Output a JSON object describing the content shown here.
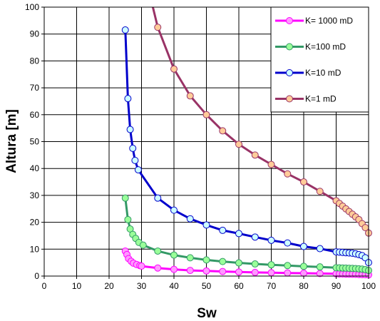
{
  "chart_data": {
    "type": "line",
    "title": "",
    "xlabel": "Sw",
    "ylabel": "Altura [m]",
    "xlim": [
      0,
      100
    ],
    "ylim": [
      0,
      100
    ],
    "xticks": [
      0,
      10,
      20,
      30,
      40,
      50,
      60,
      70,
      80,
      90,
      100
    ],
    "yticks": [
      0,
      10,
      20,
      30,
      40,
      50,
      60,
      70,
      80,
      90,
      100
    ],
    "grid": true,
    "legend_position": "top-right",
    "series": [
      {
        "name": "K= 1000 mD",
        "line_color": "#ff00ff",
        "marker_fill": "#ff99ff",
        "x": [
          25.0,
          25.5,
          26.0,
          26.8,
          27.5,
          28.5,
          29.5,
          30.0,
          35.0,
          40.0,
          45.0,
          50.0,
          55.0,
          60.0,
          65.0,
          70.0,
          75.0,
          80.0,
          85.0,
          90.0,
          91.0,
          92.0,
          93.0,
          94.0,
          95.0,
          96.0,
          97.0,
          98.0,
          99.0,
          100.0
        ],
        "y": [
          9.3,
          8.0,
          6.5,
          5.5,
          4.8,
          4.3,
          3.9,
          3.7,
          3.0,
          2.5,
          2.1,
          1.9,
          1.7,
          1.5,
          1.35,
          1.25,
          1.15,
          1.05,
          0.95,
          0.85,
          0.8,
          0.78,
          0.75,
          0.72,
          0.7,
          0.65,
          0.6,
          0.55,
          0.5,
          0.45
        ]
      },
      {
        "name": "K=100 mD",
        "line_color": "#339966",
        "marker_fill": "#99ff99",
        "x": [
          25.0,
          25.8,
          26.5,
          27.3,
          28.2,
          29.2,
          30.5,
          35.0,
          40.0,
          45.0,
          50.0,
          55.0,
          60.0,
          65.0,
          70.0,
          75.0,
          80.0,
          85.0,
          90.0,
          91.0,
          92.0,
          93.0,
          94.0,
          95.0,
          96.0,
          97.0,
          98.0,
          99.0,
          100.0
        ],
        "y": [
          29.0,
          21.0,
          17.5,
          15.5,
          14.0,
          12.5,
          11.5,
          9.3,
          7.8,
          6.8,
          6.0,
          5.4,
          4.9,
          4.5,
          4.2,
          3.9,
          3.6,
          3.4,
          3.1,
          3.05,
          3.0,
          2.95,
          2.9,
          2.85,
          2.8,
          2.7,
          2.6,
          2.4,
          2.1
        ]
      },
      {
        "name": "K=10 mD",
        "line_color": "#0000cc",
        "marker_fill": "#ccffff",
        "x": [
          25.0,
          25.8,
          26.5,
          27.3,
          28.0,
          29.0,
          35.0,
          40.0,
          45.0,
          50.0,
          55.0,
          60.0,
          65.0,
          70.0,
          75.0,
          80.0,
          85.0,
          90.0,
          91.0,
          92.0,
          93.0,
          94.0,
          95.0,
          96.0,
          97.0,
          98.0,
          99.0,
          100.0
        ],
        "y": [
          91.5,
          66.0,
          54.5,
          47.5,
          43.0,
          39.5,
          29.0,
          24.5,
          21.3,
          19.0,
          17.0,
          15.8,
          14.5,
          13.3,
          12.3,
          11.0,
          10.2,
          9.0,
          8.9,
          8.8,
          8.7,
          8.6,
          8.5,
          8.3,
          8.0,
          7.6,
          6.8,
          5.0
        ]
      },
      {
        "name": "K=1 mD",
        "line_color": "#993366",
        "marker_fill": "#ffcc99",
        "x": [
          35.0,
          40.0,
          45.0,
          50.0,
          55.0,
          60.0,
          65.0,
          70.0,
          75.0,
          80.0,
          85.0,
          90.0,
          91.0,
          92.0,
          93.0,
          94.0,
          95.0,
          96.0,
          97.0,
          98.0,
          99.0,
          100.0
        ],
        "y": [
          92.5,
          77.0,
          67.0,
          60.0,
          54.0,
          49.0,
          45.0,
          41.5,
          38.0,
          35.0,
          31.5,
          28.0,
          27.0,
          26.0,
          25.0,
          24.0,
          23.0,
          22.0,
          21.0,
          19.5,
          18.0,
          16.0
        ],
        "line_extension": {
          "x": [
            33.5,
            34.0,
            35.0
          ],
          "y": [
            100.0,
            97.5,
            92.5
          ]
        }
      }
    ]
  }
}
